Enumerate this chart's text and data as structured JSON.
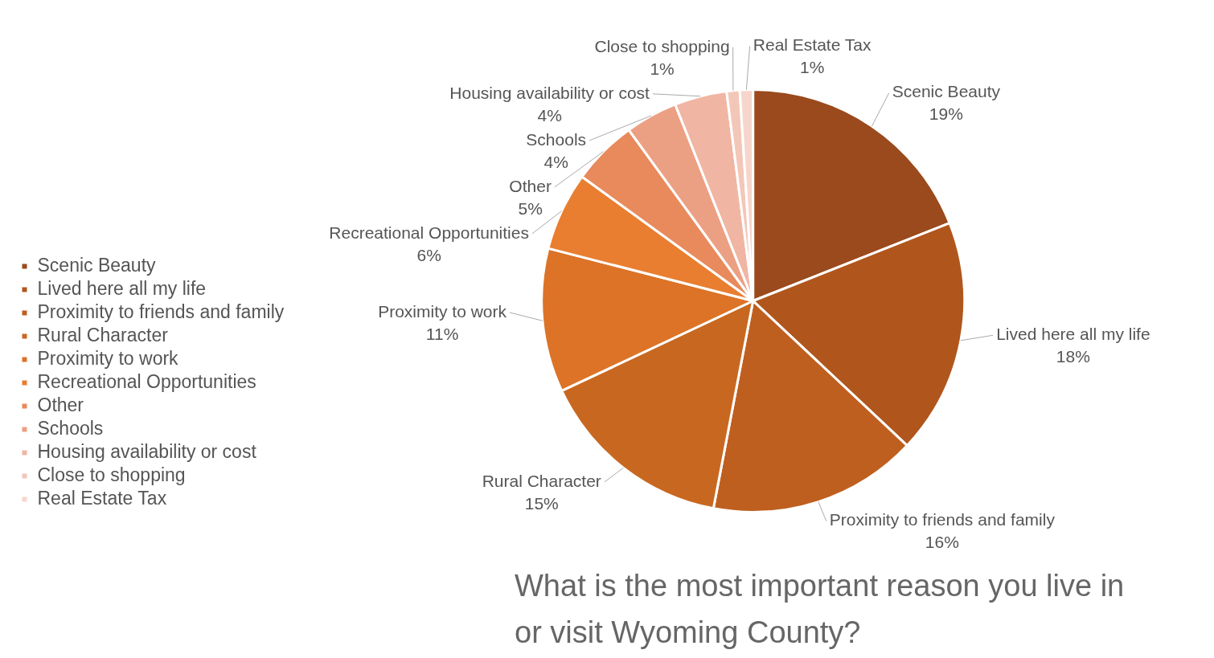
{
  "chart_data": {
    "type": "pie",
    "title": "What is the most important reason you live in or visit Wyoming County?",
    "categories": [
      "Scenic Beauty",
      "Lived here all my life",
      "Proximity to friends and family",
      "Rural Character",
      "Proximity to work",
      "Recreational Opportunities",
      "Other",
      "Schools",
      "Housing availability or cost",
      "Close to shopping",
      "Real Estate Tax"
    ],
    "values": [
      19,
      18,
      16,
      15,
      11,
      6,
      5,
      4,
      4,
      1,
      1
    ],
    "value_labels": [
      "19%",
      "18%",
      "16%",
      "15%",
      "11%",
      "6%",
      "5%",
      "4%",
      "4%",
      "1%",
      "1%"
    ],
    "colors": [
      "#9a4a1c",
      "#b0561d",
      "#bf5f1f",
      "#c86820",
      "#dc7326",
      "#e97e30",
      "#e88a5c",
      "#eca083",
      "#f0b6a3",
      "#f3c7b8",
      "#f6d6cc"
    ],
    "legend": "left"
  }
}
